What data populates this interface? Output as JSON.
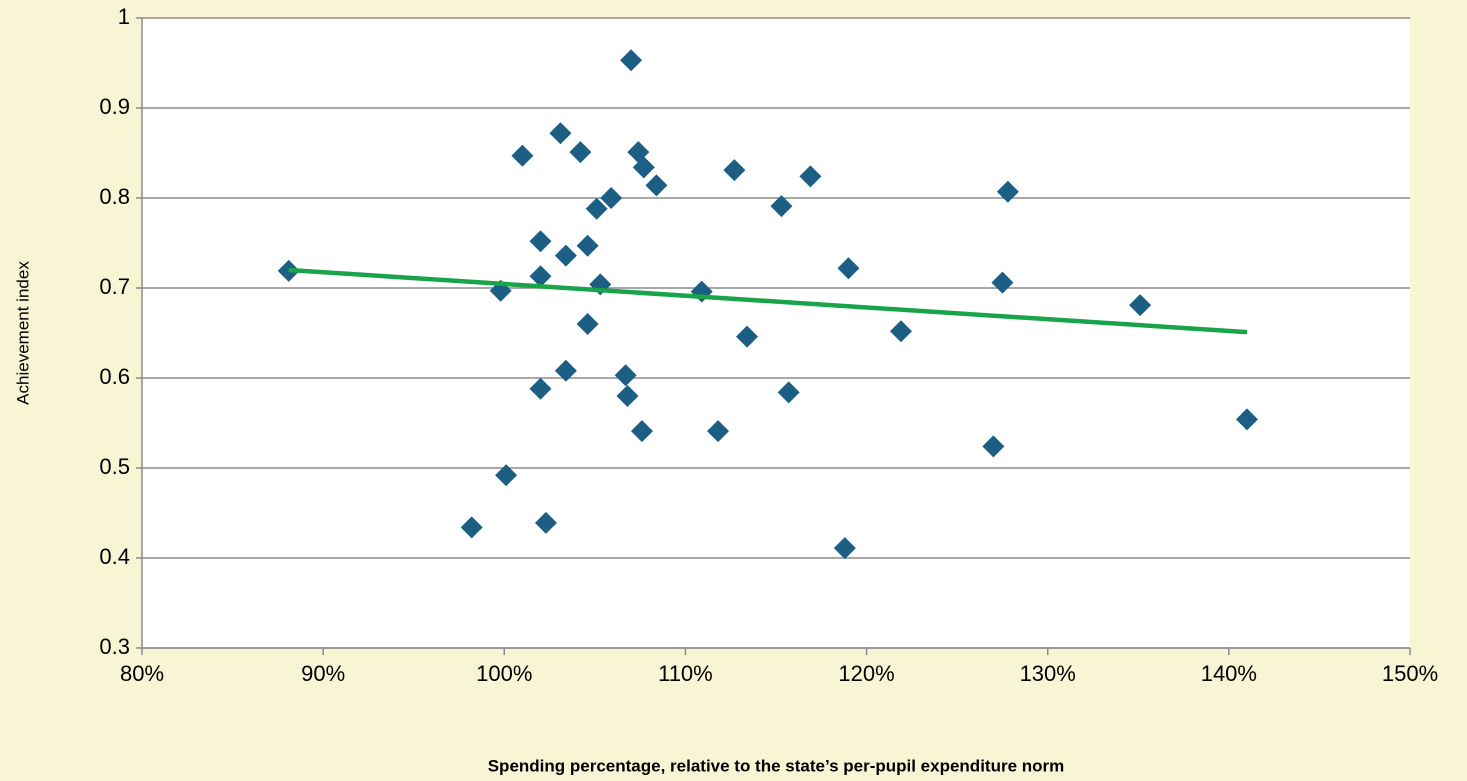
{
  "chart_data": {
    "type": "scatter",
    "x_label": "Spending percentage, relative to the state’s per-pupil expenditure norm",
    "y_label": "Achievement index",
    "x": [
      88.1,
      99.8,
      100.1,
      98.2,
      101.0,
      102.0,
      102.0,
      102.0,
      102.3,
      103.1,
      103.4,
      103.4,
      104.2,
      104.6,
      104.6,
      105.1,
      105.3,
      105.9,
      107.0,
      106.7,
      106.8,
      107.4,
      107.7,
      107.6,
      108.4,
      110.9,
      111.8,
      112.7,
      113.4,
      115.3,
      115.7,
      116.9,
      119.0,
      118.8,
      121.9,
      127.0,
      127.5,
      127.8,
      135.1,
      141.0
    ],
    "y": [
      0.719,
      0.697,
      0.492,
      0.434,
      0.847,
      0.752,
      0.713,
      0.588,
      0.439,
      0.872,
      0.736,
      0.608,
      0.851,
      0.747,
      0.66,
      0.788,
      0.704,
      0.8,
      0.953,
      0.603,
      0.58,
      0.851,
      0.834,
      0.541,
      0.814,
      0.696,
      0.541,
      0.831,
      0.646,
      0.791,
      0.584,
      0.824,
      0.722,
      0.411,
      0.652,
      0.524,
      0.706,
      0.807,
      0.681,
      0.554
    ],
    "color": "#1c5e84",
    "trendline": {
      "x": [
        88.1,
        141.0
      ],
      "y": [
        0.72,
        0.651
      ],
      "color": "#1aa44a"
    },
    "xlim": [
      80,
      150
    ],
    "xticks": [
      {
        "value": 80,
        "label": "80%"
      },
      {
        "value": 90,
        "label": "90%"
      },
      {
        "value": 100,
        "label": "100%"
      },
      {
        "value": 110,
        "label": "110%"
      },
      {
        "value": 120,
        "label": "120%"
      },
      {
        "value": 130,
        "label": "130%"
      },
      {
        "value": 140,
        "label": "140%"
      },
      {
        "value": 150,
        "label": "150%"
      }
    ],
    "ylim": [
      0.3,
      1
    ],
    "yticks": [
      0.3,
      0.4,
      0.5,
      0.6,
      0.7,
      0.8,
      0.9,
      1
    ],
    "grid": true
  }
}
